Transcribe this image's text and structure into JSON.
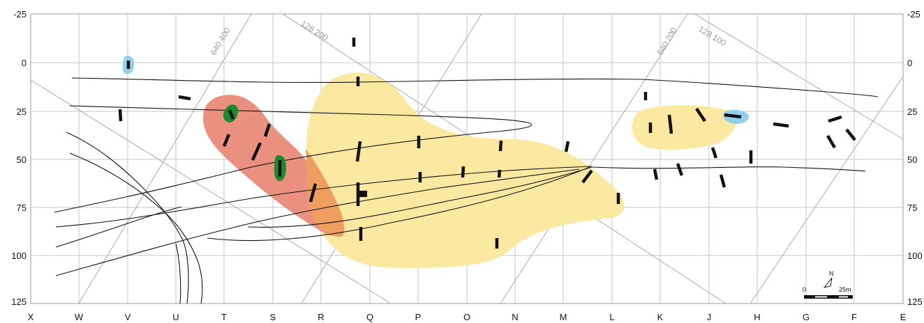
{
  "grid": {
    "columns": [
      "X",
      "W",
      "V",
      "U",
      "T",
      "S",
      "R",
      "Q",
      "P",
      "O",
      "N",
      "M",
      "L",
      "K",
      "J",
      "H",
      "G",
      "F",
      "E"
    ],
    "rows_left": [
      "-25",
      "0",
      "25",
      "50",
      "75",
      "100",
      "125"
    ],
    "rows_right": [
      "-25",
      "0",
      "25",
      "50",
      "75",
      "100",
      "125"
    ]
  },
  "coordinate_labels": {
    "easting_1": "640 400",
    "northing_1": "128 200",
    "easting_2": "640 200",
    "northing_2": "128 100"
  },
  "scale_bar": {
    "start_label": "0",
    "end_label": "25m",
    "north_label": "N"
  },
  "colors": {
    "yellow_zone": "#fbe9a2",
    "red_zone": "#e99080",
    "overlap_zone": "#ee9e5e",
    "green_marker": "#1c8a2e",
    "blue_marker": "#93d0ee",
    "grid": "#bfbfbf",
    "lines": "#111111"
  }
}
